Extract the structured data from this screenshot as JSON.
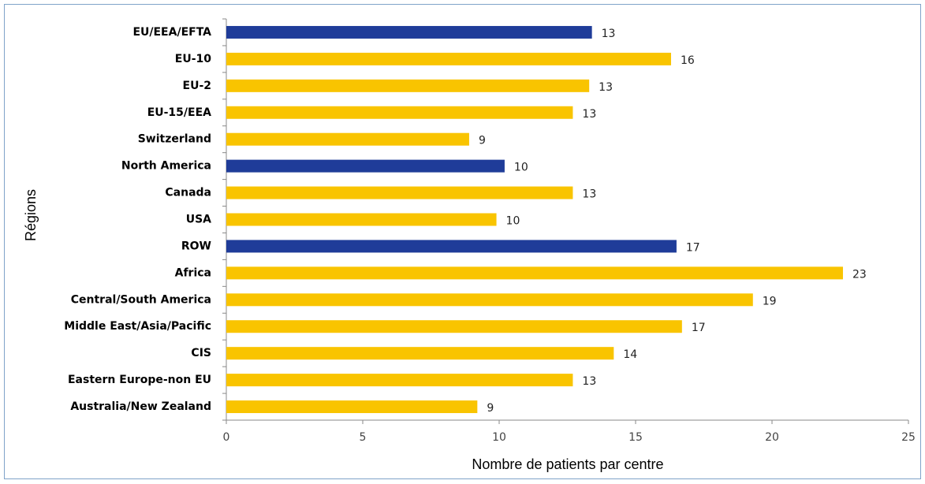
{
  "chart_data": {
    "type": "bar",
    "orientation": "horizontal",
    "categories": [
      "EU/EEA/EFTA",
      "EU-10",
      "EU-2",
      "EU-15/EEA",
      "Switzerland",
      "North America",
      "Canada",
      "USA",
      "ROW",
      "Africa",
      "Central/South America",
      "Middle East/Asia/Pacific",
      "CIS",
      "Eastern Europe-non EU",
      "Australia/New Zealand"
    ],
    "values": [
      13.4,
      16.3,
      13.3,
      12.7,
      8.9,
      10.2,
      12.7,
      9.9,
      16.5,
      22.6,
      19.3,
      16.7,
      14.2,
      12.7,
      9.2
    ],
    "value_labels": [
      "13",
      "16",
      "13",
      "13",
      "9",
      "10",
      "13",
      "10",
      "17",
      "23",
      "19",
      "17",
      "14",
      "13",
      "9"
    ],
    "colors": [
      "#1f3c99",
      "#f9c400",
      "#f9c400",
      "#f9c400",
      "#f9c400",
      "#1f3c99",
      "#f9c400",
      "#f9c400",
      "#1f3c99",
      "#f9c400",
      "#f9c400",
      "#f9c400",
      "#f9c400",
      "#f9c400",
      "#f9c400"
    ],
    "xlabel": "Nombre de patients par centre",
    "ylabel": "Régions",
    "xlim": [
      0,
      25
    ],
    "xticks": [
      0,
      5,
      10,
      15,
      20,
      25
    ]
  }
}
